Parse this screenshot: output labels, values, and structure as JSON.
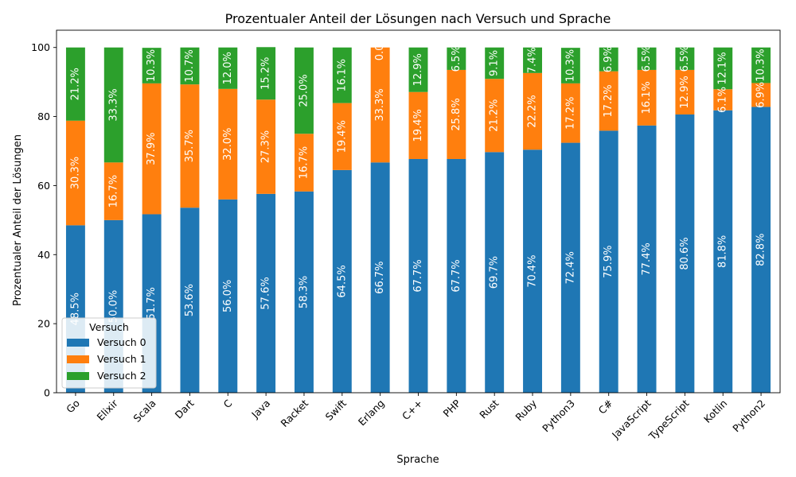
{
  "chart_data": {
    "type": "bar",
    "stacked": true,
    "title": "Prozentualer Anteil der Lösungen nach Versuch und Sprache",
    "xlabel": "Sprache",
    "ylabel": "Prozentualer Anteil der Lösungen",
    "ylim": [
      0,
      105
    ],
    "yticks": [
      0,
      20,
      40,
      60,
      80,
      100
    ],
    "categories": [
      "Go",
      "Elixir",
      "Scala",
      "Dart",
      "C",
      "Java",
      "Racket",
      "Swift",
      "Erlang",
      "C++",
      "PHP",
      "Rust",
      "Ruby",
      "Python3",
      "C#",
      "JavaScript",
      "TypeScript",
      "Kotlin",
      "Python2"
    ],
    "legend": {
      "title": "Versuch",
      "placement": "lower-left"
    },
    "grid": false,
    "series": [
      {
        "name": "Versuch 0",
        "color": "#1f77b4",
        "values": [
          48.5,
          50.0,
          51.7,
          53.6,
          56.0,
          57.6,
          58.3,
          64.5,
          66.7,
          67.7,
          67.7,
          69.7,
          70.4,
          72.4,
          75.9,
          77.4,
          80.6,
          81.8,
          82.8
        ],
        "labels": [
          "48.5%",
          "50.0%",
          "51.7%",
          "53.6%",
          "56.0%",
          "57.6%",
          "58.3%",
          "64.5%",
          "66.7%",
          "67.7%",
          "67.7%",
          "69.7%",
          "70.4%",
          "72.4%",
          "75.9%",
          "77.4%",
          "80.6%",
          "81.8%",
          "82.8%"
        ]
      },
      {
        "name": "Versuch 1",
        "color": "#ff7f0e",
        "values": [
          30.3,
          16.7,
          37.9,
          35.7,
          32.0,
          27.3,
          16.7,
          19.4,
          33.3,
          19.4,
          25.8,
          21.2,
          22.2,
          17.2,
          17.2,
          16.1,
          12.9,
          6.1,
          6.9
        ],
        "labels": [
          "30.3%",
          "16.7%",
          "37.9%",
          "35.7%",
          "32.0%",
          "27.3%",
          "16.7%",
          "19.4%",
          "33.3%",
          "19.4%",
          "25.8%",
          "21.2%",
          "22.2%",
          "17.2%",
          "17.2%",
          "16.1%",
          "12.9%",
          "6.1%",
          "6.9%"
        ]
      },
      {
        "name": "Versuch 2",
        "color": "#2ca02c",
        "values": [
          21.2,
          33.3,
          10.3,
          10.7,
          12.0,
          15.2,
          25.0,
          16.1,
          0.0,
          12.9,
          6.5,
          9.1,
          7.4,
          10.3,
          6.9,
          6.5,
          6.5,
          12.1,
          10.3
        ],
        "labels": [
          "21.2%",
          "33.3%",
          "10.3%",
          "10.7%",
          "12.0%",
          "15.2%",
          "25.0%",
          "16.1%",
          "0.0%",
          "12.9%",
          "6.5%",
          "9.1%",
          "7.4%",
          "10.3%",
          "6.9%",
          "6.5%",
          "6.5%",
          "12.1%",
          "10.3%"
        ]
      }
    ]
  }
}
